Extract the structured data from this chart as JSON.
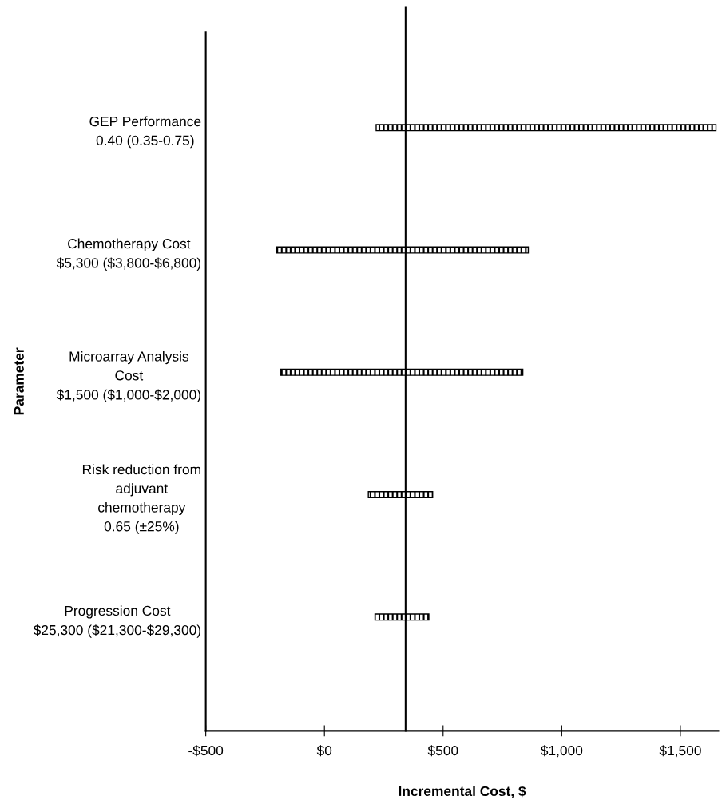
{
  "chart_data": {
    "type": "bar",
    "orientation": "horizontal",
    "categories": [
      "GEP Performance\n0.40 (0.35-0.75)",
      "Chemotherapy Cost\n$5,300 ($3,800-$6,800)",
      "Microarray Analysis\nCost\n$1,500 ($1,000-$2,000)",
      "Risk reduction from\nadjuvant\nchemotherapy\n0.65 (±25%)",
      "Progression Cost\n$25,300 ($21,300-$29,300)"
    ],
    "base": [
      218,
      -201,
      -185,
      185,
      213
    ],
    "values": [
      1432,
      1060,
      1021,
      271,
      227
    ],
    "color": "#000000",
    "xlabel": "Incremental Cost, $",
    "ylabel": "Parameter",
    "xlim": [
      -500,
      1660
    ],
    "xticks": [
      {
        "value": -500,
        "label": "-$500"
      },
      {
        "value": 0,
        "label": "$0"
      },
      {
        "value": 500,
        "label": "$500"
      },
      {
        "value": 1000,
        "label": "$1,000"
      },
      {
        "value": 1500,
        "label": "$1,500"
      }
    ],
    "ref_lines": [
      {
        "axis": "x",
        "value": 342,
        "color": "#000000"
      }
    ],
    "grid": false
  }
}
